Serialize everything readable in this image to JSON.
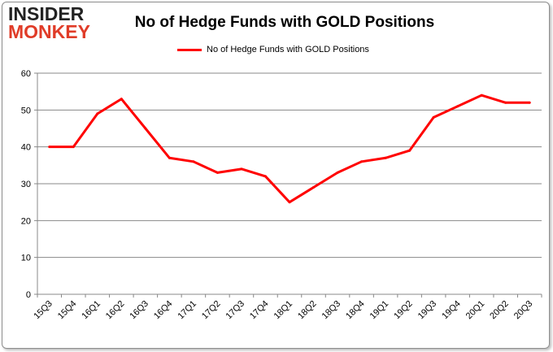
{
  "logo": {
    "line1": "INSIDER",
    "line2": "MONKEY"
  },
  "chart_data": {
    "type": "line",
    "title": "No of Hedge Funds with GOLD Positions",
    "xlabel": "",
    "ylabel": "",
    "ylim": [
      0,
      60
    ],
    "yticks": [
      0,
      10,
      20,
      30,
      40,
      50,
      60
    ],
    "grid": true,
    "legend_placement": "top",
    "categories": [
      "15Q3",
      "15Q4",
      "16Q1",
      "16Q2",
      "16Q3",
      "16Q4",
      "17Q1",
      "17Q2",
      "17Q3",
      "17Q4",
      "18Q1",
      "18Q2",
      "18Q3",
      "18Q4",
      "19Q1",
      "19Q2",
      "19Q3",
      "19Q4",
      "20Q1",
      "20Q2",
      "20Q3"
    ],
    "series": [
      {
        "name": "No of Hedge Funds with GOLD Positions",
        "color": "#ff0000",
        "values": [
          40,
          40,
          49,
          53,
          45,
          37,
          36,
          33,
          34,
          32,
          25,
          29,
          33,
          36,
          37,
          39,
          48,
          51,
          54,
          52,
          52
        ]
      }
    ]
  }
}
